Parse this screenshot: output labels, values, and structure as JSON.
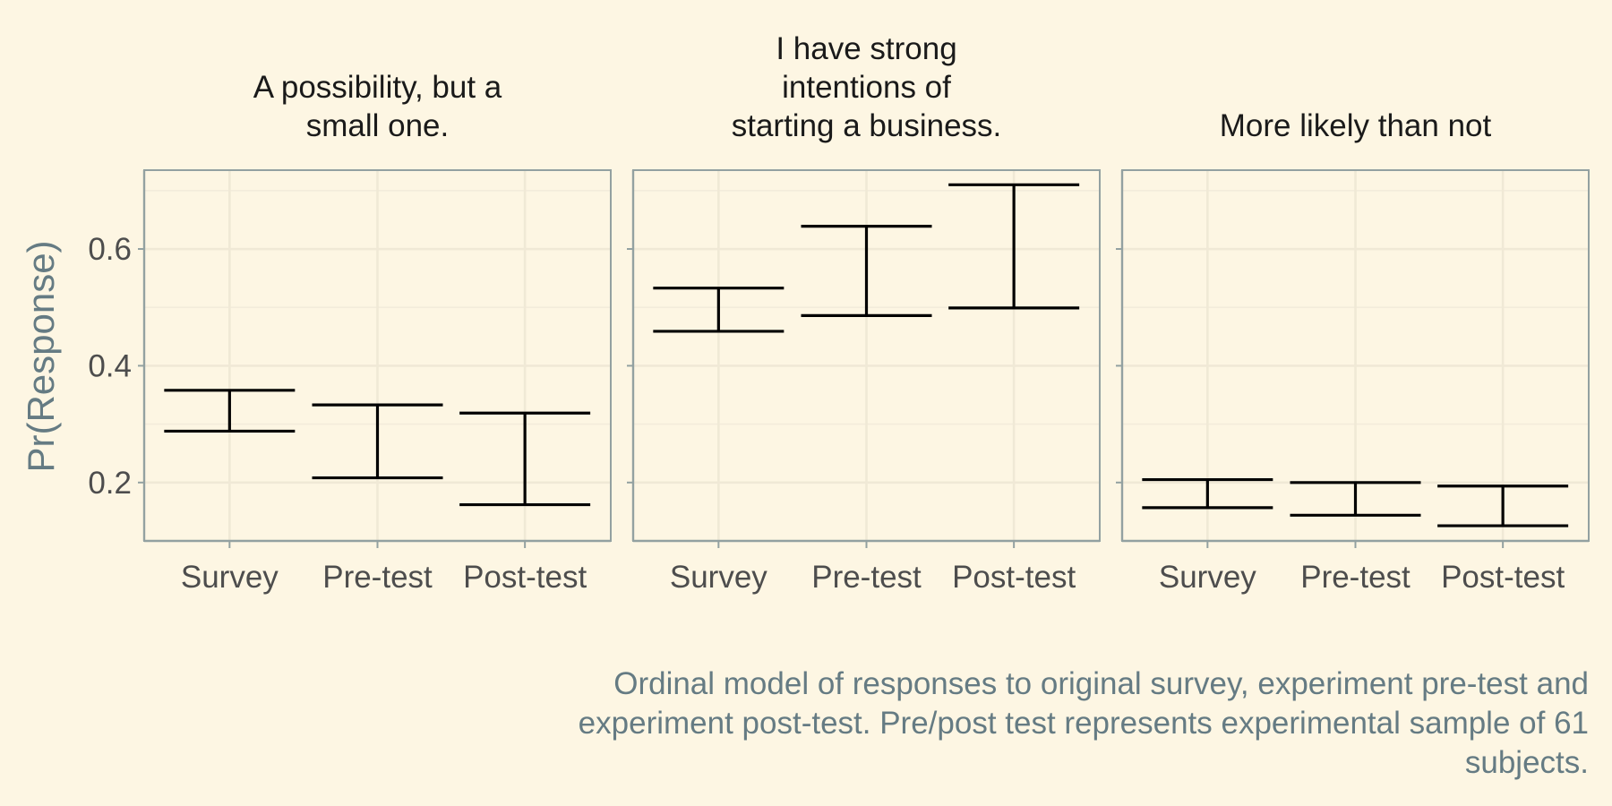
{
  "chart_data": {
    "type": "errorbar",
    "ylabel": "Pr(Response)",
    "xlabel": "",
    "ylim": [
      0.1,
      0.735
    ],
    "y_ticks": [
      0.2,
      0.4,
      0.6
    ],
    "y_minor_ticks": [
      0.1,
      0.3,
      0.5,
      0.7
    ],
    "y_tick_labels": [
      "0.2",
      "0.4",
      "0.6"
    ],
    "categories": [
      "Survey",
      "Pre-test",
      "Post-test"
    ],
    "grid": true,
    "caption_lines": [
      "Ordinal model of responses to original survey, experiment pre-test and",
      "experiment post-test. Pre/post test represents experimental sample of 61",
      "subjects."
    ],
    "panels": [
      {
        "title_lines": [
          "A possibility, but a",
          "small one."
        ],
        "intervals": [
          {
            "category": "Survey",
            "lower": 0.288,
            "upper": 0.358
          },
          {
            "category": "Pre-test",
            "lower": 0.208,
            "upper": 0.333
          },
          {
            "category": "Post-test",
            "lower": 0.162,
            "upper": 0.319
          }
        ]
      },
      {
        "title_lines": [
          "I have strong",
          "intentions of",
          "starting a business."
        ],
        "intervals": [
          {
            "category": "Survey",
            "lower": 0.459,
            "upper": 0.533
          },
          {
            "category": "Pre-test",
            "lower": 0.486,
            "upper": 0.639
          },
          {
            "category": "Post-test",
            "lower": 0.499,
            "upper": 0.71
          }
        ]
      },
      {
        "title_lines": [
          "More likely than not"
        ],
        "intervals": [
          {
            "category": "Survey",
            "lower": 0.157,
            "upper": 0.205
          },
          {
            "category": "Pre-test",
            "lower": 0.144,
            "upper": 0.2
          },
          {
            "category": "Post-test",
            "lower": 0.126,
            "upper": 0.194
          }
        ]
      }
    ]
  }
}
